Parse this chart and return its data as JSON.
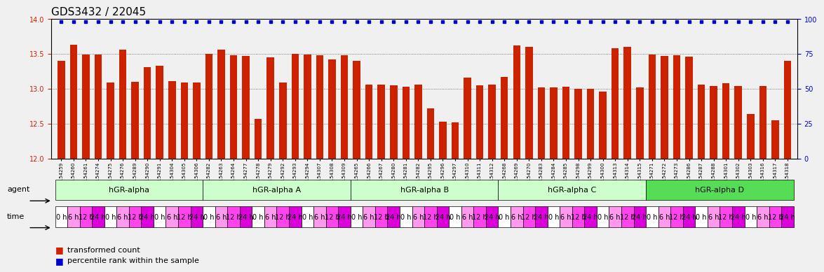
{
  "title": "GDS3432 / 22045",
  "gsm_labels": [
    "GSM154259",
    "GSM154260",
    "GSM154261",
    "GSM154274",
    "GSM154275",
    "GSM154276",
    "GSM154289",
    "GSM154290",
    "GSM154291",
    "GSM154304",
    "GSM154305",
    "GSM154306",
    "GSM154282",
    "GSM154263",
    "GSM154264",
    "GSM154277",
    "GSM154278",
    "GSM154279",
    "GSM154292",
    "GSM154293",
    "GSM154294",
    "GSM154307",
    "GSM154308",
    "GSM154309",
    "GSM154265",
    "GSM154266",
    "GSM154267",
    "GSM154280",
    "GSM154281",
    "GSM154282",
    "GSM154295",
    "GSM154296",
    "GSM154297",
    "GSM154310",
    "GSM154311",
    "GSM154312",
    "GSM154268",
    "GSM154269",
    "GSM154270",
    "GSM154283",
    "GSM154284",
    "GSM154285",
    "GSM154298",
    "GSM154299",
    "GSM154300",
    "GSM154313",
    "GSM154314",
    "GSM154315",
    "GSM154271",
    "GSM154272",
    "GSM154273",
    "GSM154286",
    "GSM154287",
    "GSM154288",
    "GSM154301",
    "GSM154302",
    "GSM154303",
    "GSM154316",
    "GSM154317",
    "GSM154318"
  ],
  "bar_values": [
    13.4,
    13.63,
    13.49,
    13.49,
    13.09,
    13.56,
    13.1,
    13.31,
    13.33,
    13.11,
    13.09,
    13.09,
    13.5,
    13.56,
    13.48,
    13.47,
    12.57,
    13.45,
    13.09,
    13.5,
    13.49,
    13.48,
    13.42,
    13.48,
    13.4,
    13.06,
    13.06,
    13.05,
    13.03,
    13.06,
    12.72,
    12.53,
    12.52,
    13.16,
    13.05,
    13.06,
    13.17,
    13.62,
    13.6,
    13.02,
    13.02,
    13.03,
    13.0,
    13.0,
    12.96,
    13.58,
    13.6,
    13.02,
    13.49,
    13.47,
    13.48,
    13.46,
    13.06,
    13.04,
    13.08,
    13.04,
    12.64,
    13.04,
    12.55,
    13.4
  ],
  "percentile_values": [
    98,
    98,
    98,
    98,
    98,
    98,
    98,
    98,
    98,
    98,
    98,
    98,
    98,
    98,
    98,
    98,
    98,
    98,
    98,
    98,
    98,
    98,
    98,
    98,
    98,
    98,
    98,
    98,
    98,
    98,
    98,
    98,
    98,
    98,
    98,
    98,
    98,
    98,
    98,
    98,
    98,
    98,
    98,
    98,
    98,
    98,
    98,
    98,
    98,
    98,
    98,
    98,
    98,
    98,
    98,
    98,
    98,
    98,
    98,
    98
  ],
  "ylim_left": [
    12.0,
    14.0
  ],
  "ylim_right": [
    0,
    100
  ],
  "yticks_left": [
    12.0,
    12.5,
    13.0,
    13.5,
    14.0
  ],
  "yticks_right": [
    0,
    25,
    50,
    75,
    100
  ],
  "bar_color": "#CC2200",
  "dot_color": "#0000CC",
  "background_color": "#F0F0F0",
  "grid_color": "#555555",
  "agents": [
    {
      "label": "hGR-alpha",
      "start": 0,
      "end": 12,
      "color": "#AAFFAA"
    },
    {
      "label": "hGR-alpha A",
      "start": 12,
      "end": 24,
      "color": "#AAFFAA"
    },
    {
      "label": "hGR-alpha B",
      "start": 24,
      "end": 36,
      "color": "#AAFFAA"
    },
    {
      "label": "hGR-alpha C",
      "start": 36,
      "end": 48,
      "color": "#AAFFAA"
    },
    {
      "label": "hGR-alpha D",
      "start": 48,
      "end": 60,
      "color": "#66EE66"
    }
  ],
  "times": [
    {
      "label": "0 h",
      "color": "#FFFFFF"
    },
    {
      "label": "6 h",
      "color": "#FF99FF"
    },
    {
      "label": "12 h",
      "color": "#FF55FF"
    },
    {
      "label": "24 h",
      "color": "#FF00FF"
    }
  ],
  "time_pattern": [
    0,
    1,
    2,
    3,
    0,
    1,
    2,
    3,
    0,
    1,
    2,
    3,
    0,
    1,
    2,
    3,
    0,
    1,
    2,
    3,
    0,
    1,
    2,
    3,
    0,
    1,
    2,
    3,
    0,
    1,
    2,
    3,
    0,
    1,
    2,
    3,
    0,
    1,
    2,
    3,
    0,
    1,
    2,
    3,
    0,
    1,
    2,
    3,
    0,
    1,
    2,
    3,
    0,
    1,
    2,
    3,
    0,
    1,
    2,
    3
  ],
  "legend_bar_label": "transformed count",
  "legend_dot_label": "percentile rank within the sample",
  "title_fontsize": 11,
  "tick_fontsize": 6,
  "axis_label_color_left": "#CC2200",
  "axis_label_color_right": "#0000CC"
}
